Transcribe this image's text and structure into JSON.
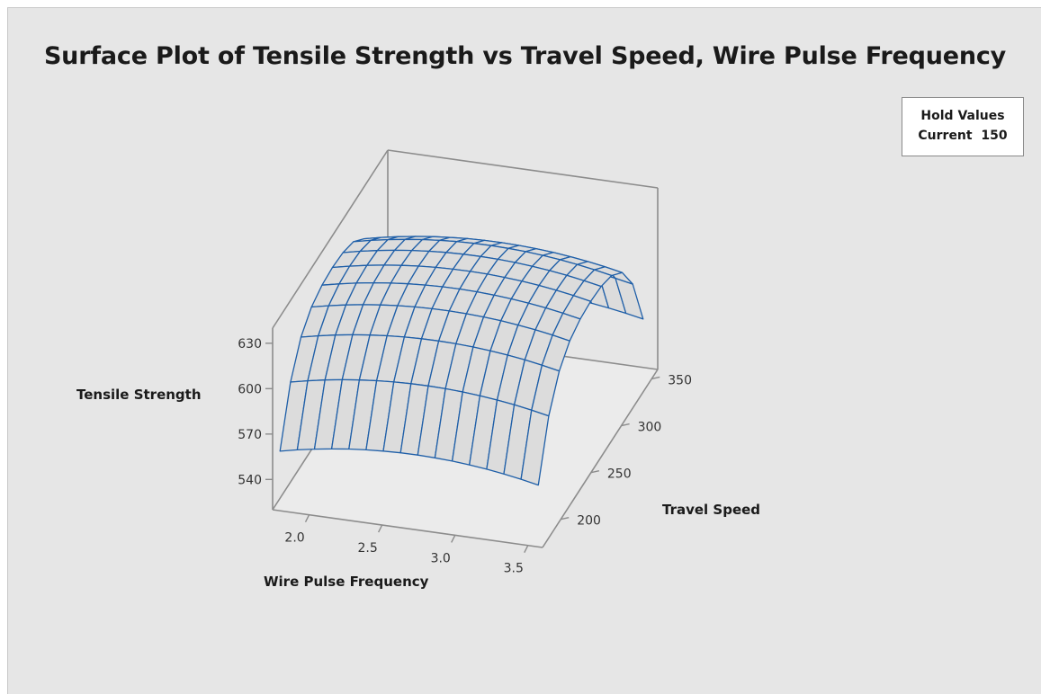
{
  "chart_data": {
    "type": "surface",
    "title": "Surface Plot of Tensile Strength vs Travel Speed, Wire Pulse Frequency",
    "hold_values": {
      "header": "Hold Values",
      "items": [
        {
          "name": "Current",
          "value": "150"
        }
      ]
    },
    "x_axis": {
      "label": "Wire Pulse Frequency",
      "ticks": [
        "2.0",
        "2.5",
        "3.0",
        "3.5"
      ],
      "range": [
        1.75,
        3.6
      ]
    },
    "y_axis": {
      "label": "Travel Speed",
      "ticks": [
        "200",
        "250",
        "300",
        "350"
      ],
      "range": [
        170,
        360
      ]
    },
    "z_axis": {
      "label": "Tensile Strength",
      "ticks": [
        "540",
        "570",
        "600",
        "630"
      ],
      "range": [
        520,
        640
      ]
    },
    "grid_lines": {
      "x_count": 16,
      "y_count": 11
    },
    "surface_color": "#1f5fa8",
    "fill_color": "#dcdcdc"
  }
}
